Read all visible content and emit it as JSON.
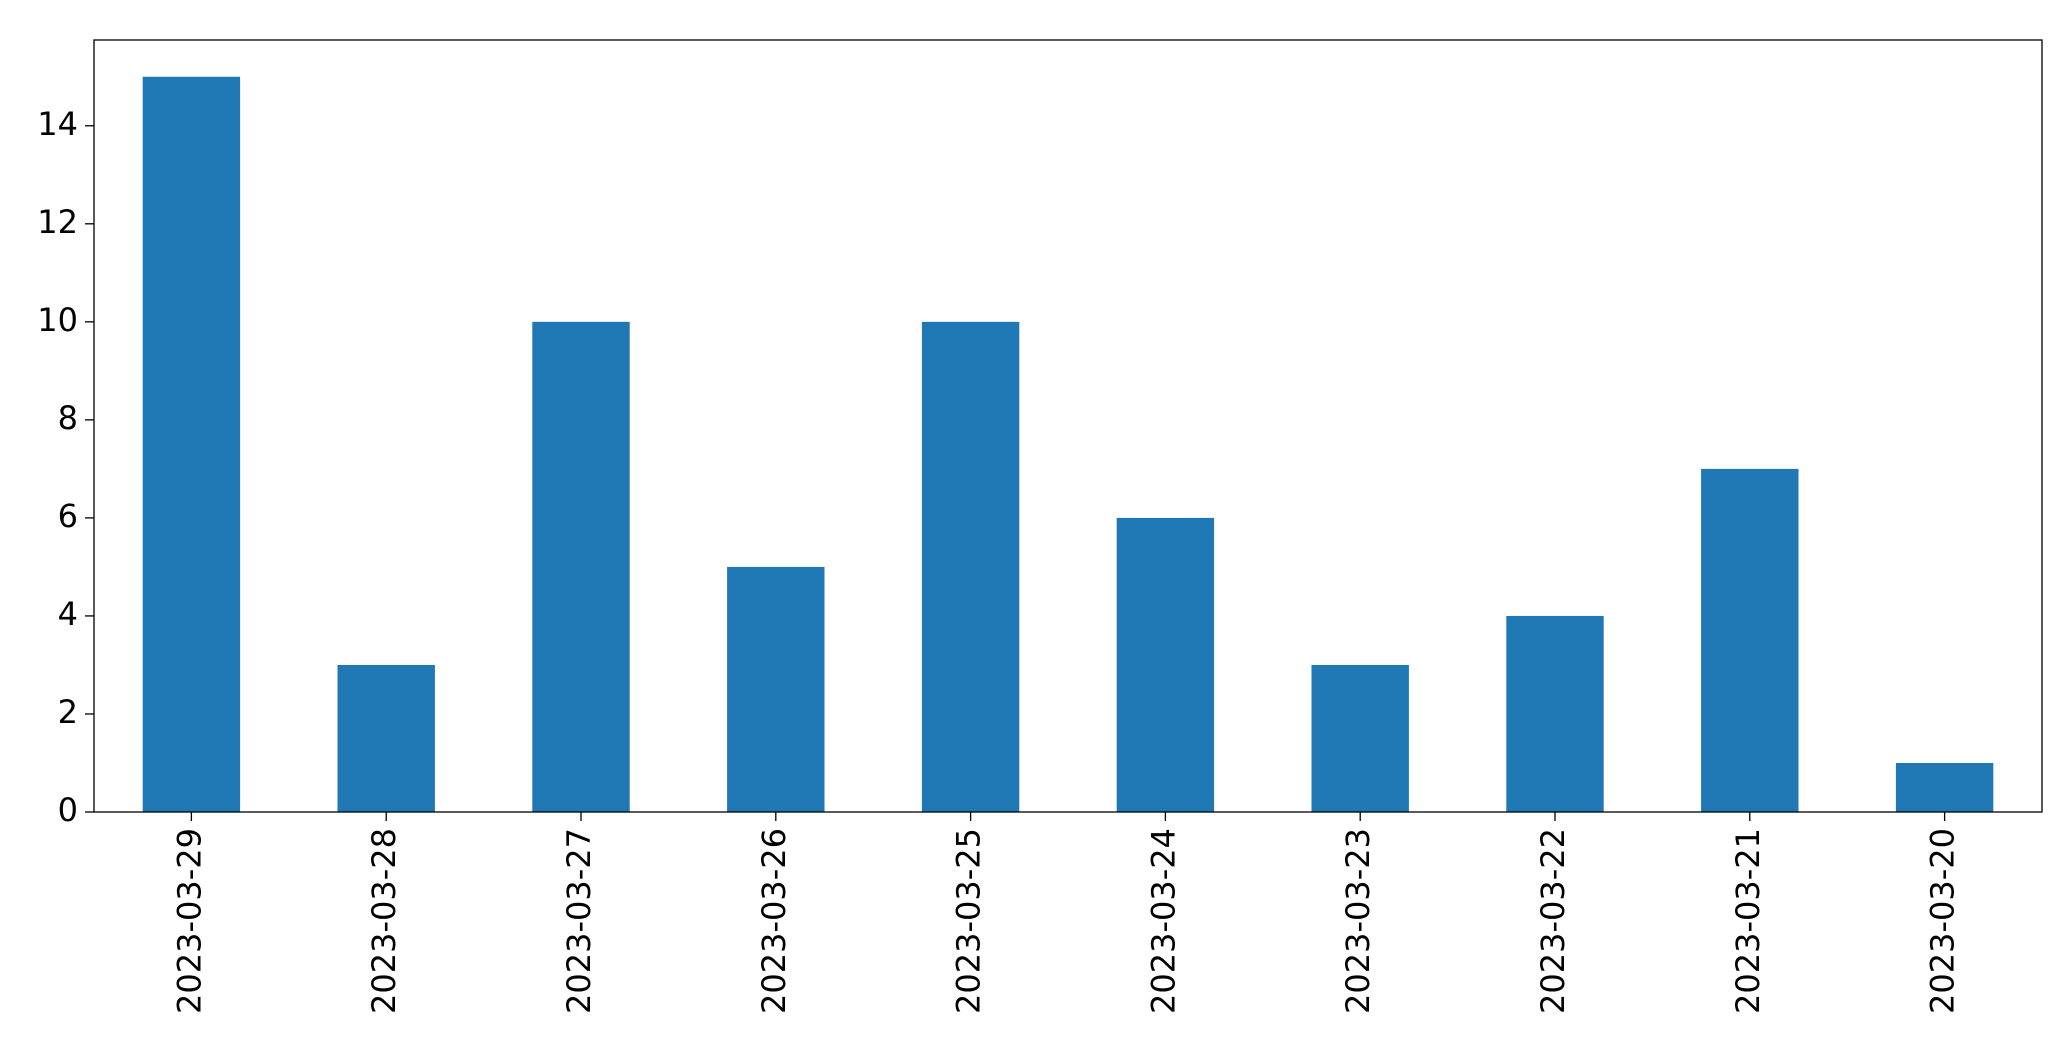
{
  "chart_data": {
    "type": "bar",
    "categories": [
      "2023-03-29",
      "2023-03-28",
      "2023-03-27",
      "2023-03-26",
      "2023-03-25",
      "2023-03-24",
      "2023-03-23",
      "2023-03-22",
      "2023-03-21",
      "2023-03-20"
    ],
    "values": [
      15,
      3,
      10,
      5,
      10,
      6,
      3,
      4,
      7,
      1
    ],
    "color": "#1f77b4",
    "ylim": [
      0,
      15.75
    ],
    "yticks": [
      0,
      2,
      4,
      6,
      8,
      10,
      12,
      14
    ],
    "grid": false
  }
}
